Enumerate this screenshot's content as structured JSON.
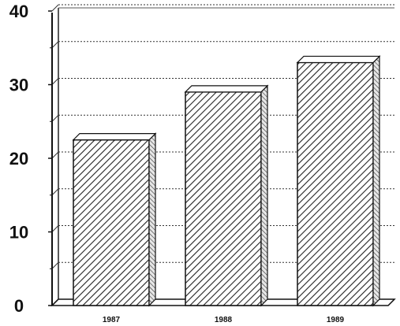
{
  "chart_data": {
    "type": "bar",
    "categories": [
      "1987",
      "1988",
      "1989"
    ],
    "values": [
      22.5,
      29,
      33
    ],
    "title": "",
    "xlabel": "",
    "ylabel": "",
    "ylim": [
      0,
      40
    ],
    "yticks": [
      0,
      10,
      20,
      30,
      40
    ],
    "grid": true,
    "style": "3d-hatched"
  }
}
